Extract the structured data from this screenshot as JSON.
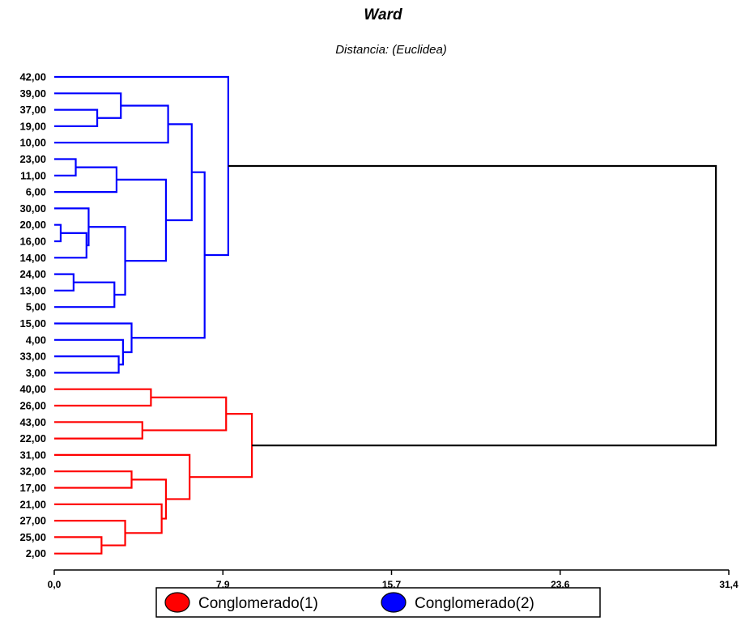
{
  "chart_data": {
    "type": "dendrogram",
    "title": "Ward",
    "subtitle": "Distancia: (Euclidea)",
    "xlim": [
      0,
      31.4
    ],
    "x_ticks": [
      "0,0",
      "7,9",
      "15,7",
      "23,6",
      "31,4"
    ],
    "leaves": [
      "42,00",
      "39,00",
      "37,00",
      "19,00",
      "10,00",
      "23,00",
      "11,00",
      "6,00",
      "30,00",
      "20,00",
      "16,00",
      "14,00",
      "24,00",
      "13,00",
      "5,00",
      "15,00",
      "4,00",
      "33,00",
      "3,00",
      "40,00",
      "26,00",
      "43,00",
      "22,00",
      "31,00",
      "32,00",
      "17,00",
      "21,00",
      "27,00",
      "25,00",
      "2,00"
    ],
    "colors": {
      "cluster1": "#ff0000",
      "cluster2": "#0000ff",
      "root": "#000000"
    },
    "merges": [
      {
        "children": [
          "20,00",
          "16,00"
        ],
        "height": 0.3,
        "cluster": 2
      },
      {
        "children": [
          "23,00",
          "11,00"
        ],
        "height": 1.0,
        "cluster": 2
      },
      {
        "children": [
          "24,00",
          "13,00"
        ],
        "height": 0.9,
        "cluster": 2
      },
      {
        "children": [
          "37,00",
          "19,00"
        ],
        "height": 2.0,
        "cluster": 2
      },
      {
        "children": [
          "25,00",
          "2,00"
        ],
        "height": 2.2,
        "cluster": 1
      },
      {
        "children": [
          "m0",
          "14,00"
        ],
        "height": 1.5,
        "cluster": 2
      },
      {
        "children": [
          "30,00",
          "m5"
        ],
        "height": 1.6,
        "cluster": 2
      },
      {
        "children": [
          "m2",
          "5,00"
        ],
        "height": 2.8,
        "cluster": 2
      },
      {
        "children": [
          "m1",
          "6,00"
        ],
        "height": 2.9,
        "cluster": 2
      },
      {
        "children": [
          "39,00",
          "m3"
        ],
        "height": 3.1,
        "cluster": 2
      },
      {
        "children": [
          "33,00",
          "3,00"
        ],
        "height": 3.0,
        "cluster": 2
      },
      {
        "children": [
          "4,00",
          "m10"
        ],
        "height": 3.2,
        "cluster": 2
      },
      {
        "children": [
          "15,00",
          "m11"
        ],
        "height": 3.6,
        "cluster": 2
      },
      {
        "children": [
          "27,00",
          "m4"
        ],
        "height": 3.3,
        "cluster": 1
      },
      {
        "children": [
          "32,00",
          "17,00"
        ],
        "height": 3.6,
        "cluster": 1
      },
      {
        "children": [
          "m6",
          "m7"
        ],
        "height": 3.3,
        "cluster": 2
      },
      {
        "children": [
          "43,00",
          "22,00"
        ],
        "height": 4.1,
        "cluster": 1
      },
      {
        "children": [
          "40,00",
          "26,00"
        ],
        "height": 4.5,
        "cluster": 1
      },
      {
        "children": [
          "21,00",
          "m13"
        ],
        "height": 5.0,
        "cluster": 1
      },
      {
        "children": [
          "m8",
          "m15"
        ],
        "height": 5.2,
        "cluster": 2
      },
      {
        "children": [
          "m14",
          "m18"
        ],
        "height": 5.2,
        "cluster": 1
      },
      {
        "children": [
          "m9",
          "10,00"
        ],
        "height": 5.3,
        "cluster": 2
      },
      {
        "children": [
          "31,00",
          "m20"
        ],
        "height": 6.3,
        "cluster": 1
      },
      {
        "children": [
          "m21",
          "m19"
        ],
        "height": 6.4,
        "cluster": 2
      },
      {
        "children": [
          "m23",
          "m12"
        ],
        "height": 7.0,
        "cluster": 2
      },
      {
        "children": [
          "m17",
          "m16"
        ],
        "height": 8.0,
        "cluster": 1
      },
      {
        "children": [
          "42,00",
          "m24"
        ],
        "height": 8.1,
        "cluster": 2
      },
      {
        "children": [
          "m25",
          "m22"
        ],
        "height": 9.2,
        "cluster": 1
      },
      {
        "children": [
          "m26",
          "m27"
        ],
        "height": 30.8,
        "cluster": 0
      }
    ],
    "legend": [
      {
        "label": "Conglomerado(1)",
        "color": "#ff0000"
      },
      {
        "label": "Conglomerado(2)",
        "color": "#0000ff"
      }
    ]
  }
}
